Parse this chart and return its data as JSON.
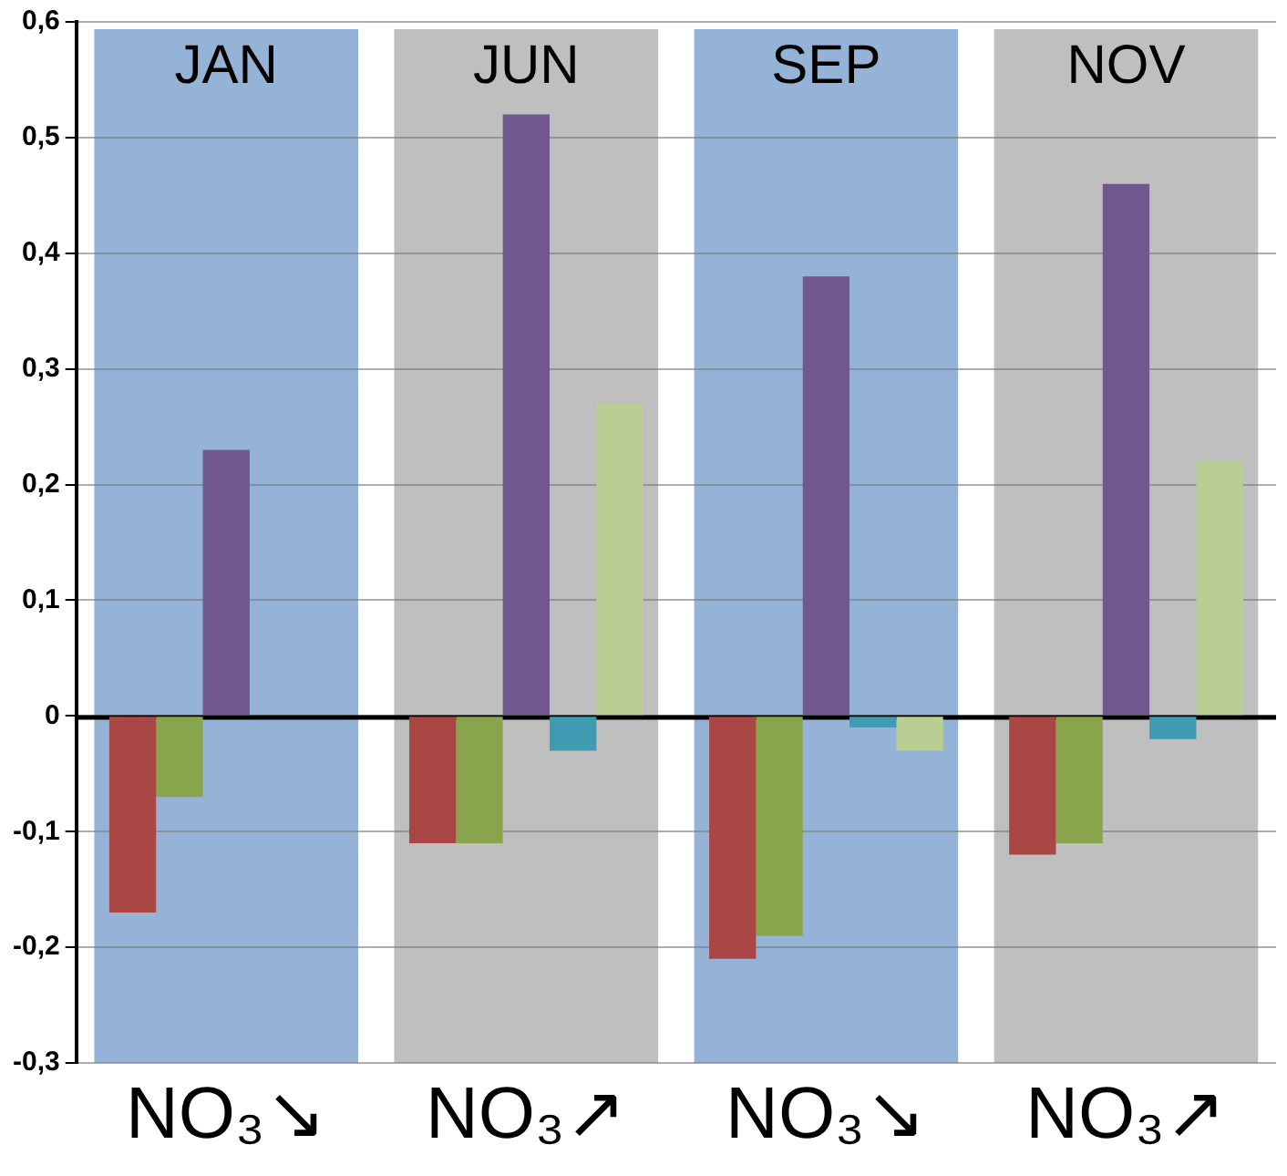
{
  "chart_data": {
    "type": "bar",
    "categories": [
      "JAN",
      "JUN",
      "SEP",
      "NOV"
    ],
    "annotations": [
      "NO₃↘",
      "NO₃↗",
      "NO₃↘",
      "NO₃↗"
    ],
    "series": [
      {
        "color": "#a94745",
        "values": [
          -0.17,
          -0.11,
          -0.21,
          -0.12
        ]
      },
      {
        "color": "#88a54d",
        "values": [
          -0.07,
          -0.11,
          -0.19,
          -0.11
        ]
      },
      {
        "color": "#70578e",
        "values": [
          0.23,
          0.52,
          0.38,
          0.46
        ]
      },
      {
        "color": "#3f9bb2",
        "values": [
          0,
          -0.03,
          -0.01,
          -0.02
        ]
      },
      {
        "color": "#b8ce93",
        "values": [
          0,
          0.27,
          -0.03,
          0.22
        ]
      }
    ],
    "bands": [
      {
        "axis": "x",
        "from": "JAN",
        "to": "JAN",
        "color": "#95b3d7"
      },
      {
        "axis": "x",
        "from": "JUN",
        "to": "JUN",
        "color": "#bfbfbf"
      },
      {
        "axis": "x",
        "from": "SEP",
        "to": "SEP",
        "color": "#95b3d7"
      },
      {
        "axis": "x",
        "from": "NOV",
        "to": "NOV",
        "color": "#bfbfbf"
      }
    ],
    "ylim": [
      -0.3,
      0.6
    ],
    "yticks": [
      {
        "value": -0.3,
        "label": "-0,3"
      },
      {
        "value": -0.2,
        "label": "-0,2"
      },
      {
        "value": -0.1,
        "label": "-0,1"
      },
      0,
      {
        "value": 0.1,
        "label": "0,1"
      },
      {
        "value": 0.2,
        "label": "0,2"
      },
      {
        "value": 0.3,
        "label": "0,3"
      },
      {
        "value": 0.4,
        "label": "0,4"
      },
      {
        "value": 0.5,
        "label": "0,5"
      },
      {
        "value": 0.6,
        "label": "0,6"
      }
    ],
    "grid": "y"
  }
}
